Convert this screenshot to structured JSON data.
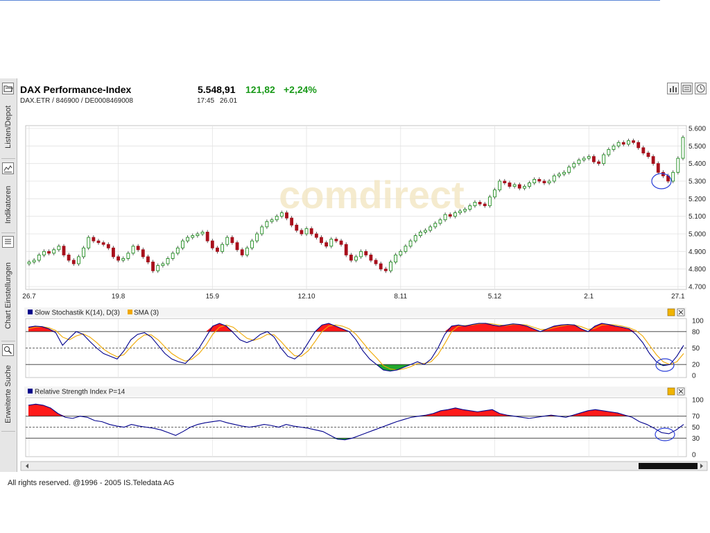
{
  "header": {
    "title": "DAX Performance-Index",
    "subline": "DAX.ETR  /  846900  /  DE0008469008",
    "price": "5.548,91",
    "change": "121,82",
    "change_pct": "+2,24%",
    "time": "17:45",
    "date": "26.01"
  },
  "sidebar": {
    "items": [
      {
        "label": "Listen/Depot",
        "icon": "folder-icon"
      },
      {
        "label": "Indikatoren",
        "icon": "indicator-icon"
      },
      {
        "label": "Chart Einstellungen",
        "icon": "list-icon"
      },
      {
        "label": "Erweiterte Suche",
        "icon": "search-icon"
      }
    ]
  },
  "toolbar_icons": [
    "bar-chart-icon",
    "news-icon",
    "clock-icon"
  ],
  "watermark": "comdirect",
  "footer": "All rights reserved. @1996 - 2005 IS.Teledata AG",
  "colors": {
    "up": "#1e8c1e",
    "down": "#a8101c",
    "fill_red": "#ff1a1a",
    "fill_green": "#22a82e",
    "line_blue": "#00008c",
    "line_orange": "#f0a800"
  },
  "chart_data": [
    {
      "type": "candlestick",
      "x_ticks": [
        "26.7",
        "19.8",
        "15.9",
        "12.10",
        "8.11",
        "5.12",
        "2.1",
        "27.1"
      ],
      "y_ticks": [
        "5.600",
        "5.500",
        "5.400",
        "5.300",
        "5.200",
        "5.100",
        "5.000",
        "4.900",
        "4.800",
        "4.700"
      ],
      "ylim": [
        4700,
        5600
      ],
      "grid": true,
      "close": [
        4840,
        4850,
        4880,
        4900,
        4890,
        4910,
        4930,
        4880,
        4850,
        4830,
        4870,
        4920,
        4980,
        4960,
        4950,
        4940,
        4920,
        4870,
        4850,
        4860,
        4890,
        4930,
        4910,
        4870,
        4840,
        4790,
        4820,
        4830,
        4860,
        4890,
        4920,
        4960,
        4980,
        4990,
        5000,
        5010,
        4960,
        4920,
        4900,
        4940,
        4980,
        4950,
        4910,
        4880,
        4920,
        4960,
        5000,
        5040,
        5070,
        5080,
        5100,
        5120,
        5090,
        5050,
        5020,
        5000,
        5030,
        5000,
        4980,
        4950,
        4930,
        4970,
        4960,
        4940,
        4880,
        4850,
        4870,
        4900,
        4880,
        4850,
        4830,
        4800,
        4790,
        4840,
        4880,
        4900,
        4930,
        4960,
        4990,
        5010,
        5020,
        5040,
        5060,
        5080,
        5110,
        5100,
        5120,
        5130,
        5140,
        5160,
        5180,
        5170,
        5160,
        5210,
        5250,
        5300,
        5290,
        5270,
        5280,
        5260,
        5270,
        5290,
        5310,
        5300,
        5290,
        5300,
        5330,
        5340,
        5350,
        5380,
        5400,
        5420,
        5430,
        5440,
        5410,
        5400,
        5450,
        5480,
        5500,
        5520,
        5510,
        5530,
        5520,
        5490,
        5460,
        5440,
        5400,
        5350,
        5330,
        5300,
        5350,
        5430,
        5549
      ],
      "x_label_candle_index": [
        0,
        18,
        37,
        56,
        75,
        94,
        113,
        131
      ]
    },
    {
      "type": "line",
      "title": "Slow Stochastik K(14), D(3)",
      "series": [
        {
          "name": "Slow Stochastik K(14), D(3)",
          "values": [
            88,
            90,
            89,
            85,
            78,
            55,
            68,
            80,
            75,
            62,
            50,
            40,
            35,
            30,
            45,
            65,
            75,
            78,
            70,
            55,
            40,
            30,
            25,
            22,
            35,
            50,
            70,
            90,
            95,
            90,
            78,
            65,
            60,
            65,
            75,
            80,
            70,
            50,
            35,
            30,
            40,
            60,
            80,
            92,
            95,
            90,
            85,
            80,
            65,
            45,
            30,
            20,
            10,
            8,
            10,
            15,
            20,
            25,
            20,
            30,
            50,
            75,
            90,
            92,
            90,
            93,
            95,
            95,
            92,
            90,
            92,
            94,
            93,
            90,
            85,
            80,
            85,
            90,
            92,
            93,
            92,
            85,
            80,
            90,
            95,
            93,
            90,
            88,
            85,
            75,
            60,
            40,
            25,
            18,
            20,
            35,
            55
          ]
        },
        {
          "name": "SMA (3)",
          "values": [
            85,
            88,
            89,
            87,
            82,
            70,
            65,
            72,
            76,
            70,
            60,
            48,
            40,
            34,
            38,
            52,
            65,
            74,
            74,
            65,
            52,
            40,
            32,
            26,
            30,
            40,
            55,
            75,
            88,
            92,
            88,
            78,
            68,
            64,
            68,
            75,
            74,
            62,
            48,
            36,
            35,
            45,
            62,
            80,
            90,
            92,
            90,
            85,
            75,
            60,
            45,
            32,
            18,
            12,
            10,
            12,
            16,
            22,
            22,
            25,
            38,
            58,
            80,
            90,
            91,
            92,
            94,
            95,
            94,
            92,
            91,
            93,
            93,
            92,
            88,
            84,
            84,
            87,
            90,
            92,
            92,
            89,
            84,
            86,
            92,
            93,
            92,
            90,
            87,
            82,
            72,
            55,
            38,
            25,
            20,
            25,
            40
          ]
        }
      ],
      "y_ticks": [
        "100",
        "80",
        "50",
        "20",
        "0"
      ],
      "ylim": [
        0,
        100
      ]
    },
    {
      "type": "line",
      "title": "Relative Strength Index P=14",
      "series": [
        {
          "name": "Relative Strength Index P=14",
          "values": [
            90,
            92,
            90,
            85,
            75,
            68,
            66,
            70,
            68,
            62,
            60,
            55,
            52,
            50,
            55,
            52,
            50,
            48,
            45,
            40,
            35,
            42,
            50,
            55,
            58,
            60,
            62,
            58,
            55,
            52,
            50,
            52,
            55,
            53,
            50,
            55,
            52,
            50,
            48,
            45,
            42,
            35,
            28,
            27,
            30,
            35,
            40,
            45,
            50,
            55,
            60,
            64,
            68,
            70,
            72,
            75,
            80,
            82,
            85,
            82,
            80,
            78,
            80,
            82,
            75,
            72,
            70,
            68,
            66,
            68,
            70,
            72,
            70,
            68,
            72,
            76,
            80,
            82,
            80,
            78,
            76,
            72,
            68,
            60,
            55,
            48,
            40,
            38,
            45,
            55
          ]
        }
      ],
      "y_ticks": [
        "100",
        "70",
        "50",
        "30",
        "0"
      ],
      "ylim": [
        0,
        100
      ]
    }
  ]
}
